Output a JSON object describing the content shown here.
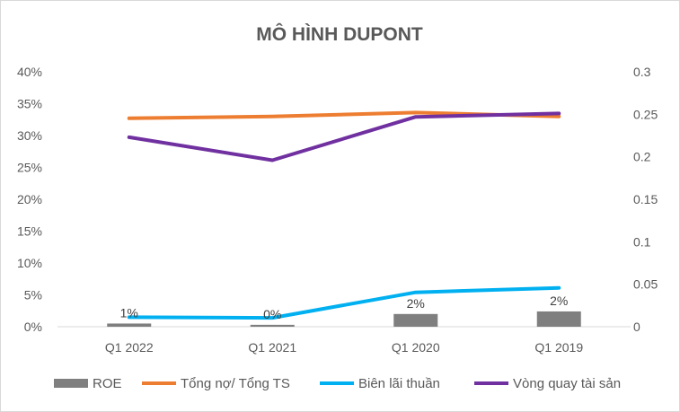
{
  "chart_data": {
    "type": "bar+line",
    "title": "MÔ HÌNH DUPONT",
    "categories": [
      "Q1 2022",
      "Q1 2021",
      "Q1 2020",
      "Q1 2019"
    ],
    "y_left": {
      "ticks": [
        "0%",
        "5%",
        "10%",
        "15%",
        "20%",
        "25%",
        "30%",
        "35%",
        "40%"
      ],
      "range": [
        0,
        0.4
      ]
    },
    "y_right": {
      "ticks": [
        "0",
        "0.05",
        "0.1",
        "0.15",
        "0.2",
        "0.25",
        "0.3"
      ],
      "range": [
        0,
        0.3
      ]
    },
    "grid": false,
    "legend_position": "bottom",
    "series": [
      {
        "name": "ROE",
        "kind": "bar",
        "axis": "left",
        "color": "#7f7f7f",
        "values": [
          0.005,
          0.003,
          0.02,
          0.024
        ],
        "data_labels": [
          "1%",
          "0%",
          "2%",
          "2%"
        ]
      },
      {
        "name": "Tổng nợ/ Tổng TS",
        "kind": "line",
        "axis": "left",
        "color": "#ed7d31",
        "values": [
          0.327,
          0.33,
          0.336,
          0.33
        ]
      },
      {
        "name": "Biên lãi thuần",
        "kind": "line",
        "axis": "left",
        "color": "#00b0f0",
        "values": [
          0.015,
          0.014,
          0.054,
          0.061
        ]
      },
      {
        "name": "Vòng quay tài sản",
        "kind": "line",
        "axis": "right",
        "color": "#7030a0",
        "values": [
          0.223,
          0.196,
          0.247,
          0.251
        ]
      }
    ]
  }
}
